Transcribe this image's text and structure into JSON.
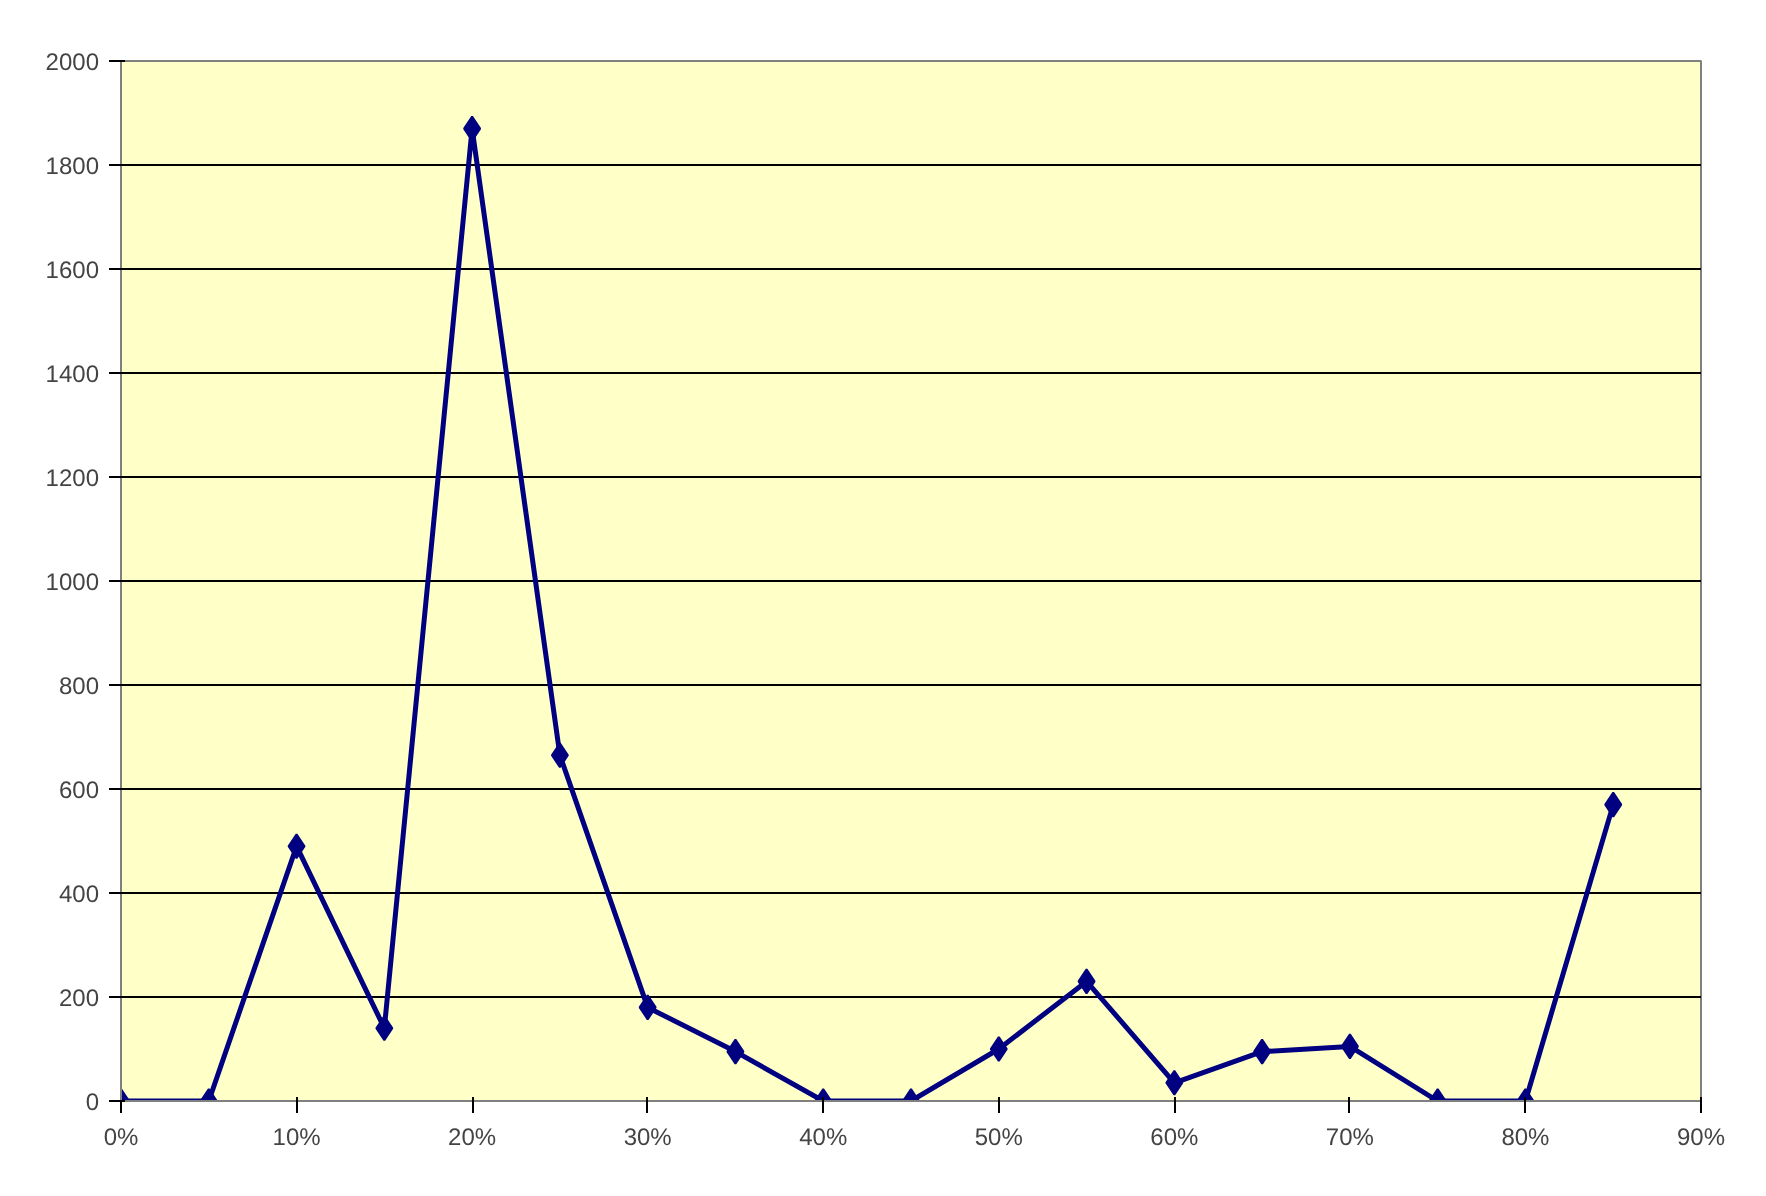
{
  "chart_data": {
    "type": "line",
    "x": [
      0,
      5,
      10,
      15,
      20,
      25,
      30,
      35,
      40,
      45,
      50,
      55,
      60,
      65,
      70,
      75,
      80,
      85
    ],
    "series": [
      {
        "color": "#000080",
        "values": [
          0,
          0,
          490,
          140,
          1870,
          665,
          180,
          95,
          0,
          0,
          100,
          230,
          35,
          95,
          105,
          0,
          0,
          570
        ]
      }
    ],
    "xlim": [
      0,
      90
    ],
    "xticks": [
      {
        "value": 0,
        "label": "0%"
      },
      {
        "value": 10,
        "label": "10%"
      },
      {
        "value": 20,
        "label": "20%"
      },
      {
        "value": 30,
        "label": "30%"
      },
      {
        "value": 40,
        "label": "40%"
      },
      {
        "value": 50,
        "label": "50%"
      },
      {
        "value": 60,
        "label": "60%"
      },
      {
        "value": 70,
        "label": "70%"
      },
      {
        "value": 80,
        "label": "80%"
      },
      {
        "value": 90,
        "label": "90%"
      }
    ],
    "ylim": [
      0,
      2000
    ],
    "yticks": [
      0,
      200,
      400,
      600,
      800,
      1000,
      1200,
      1400,
      1600,
      1800,
      2000
    ],
    "grid": "y",
    "marker": "diamond",
    "line_style": "solid"
  }
}
